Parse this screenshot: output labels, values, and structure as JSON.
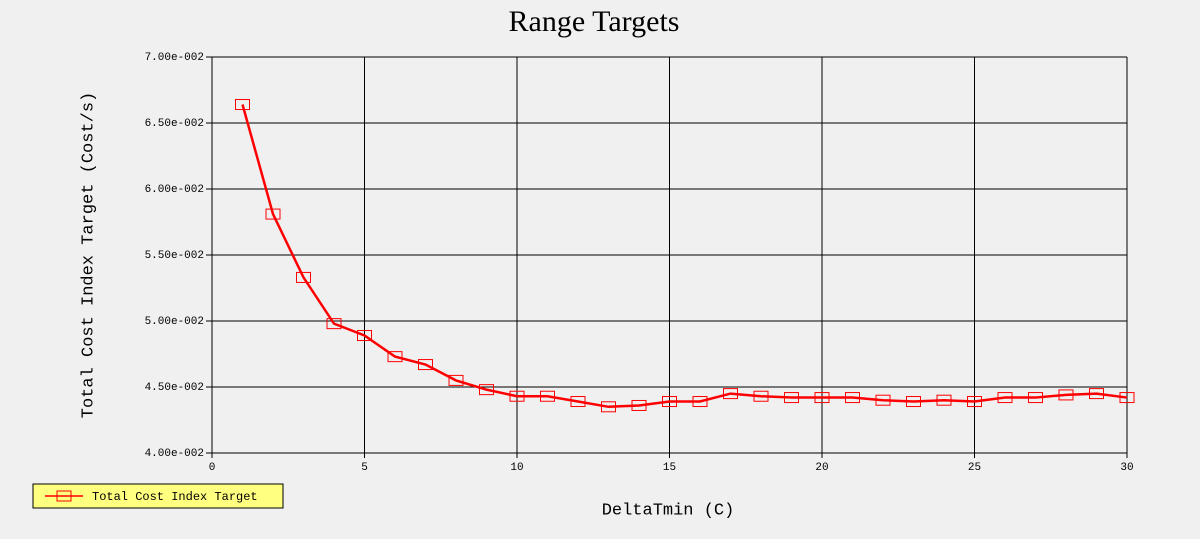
{
  "chart_data": {
    "type": "line",
    "title": "Range Targets",
    "x_label": "DeltaTmin (C)",
    "y_label": "Total Cost Index Target (Cost/s)",
    "x": [
      1,
      2,
      3,
      4,
      5,
      6,
      7,
      8,
      9,
      10,
      11,
      12,
      13,
      14,
      15,
      16,
      17,
      18,
      19,
      20,
      21,
      22,
      23,
      24,
      25,
      26,
      27,
      28,
      29,
      30
    ],
    "series": [
      {
        "name": "Total Cost Index Target",
        "color": "#ff0000",
        "values": [
          0.0664,
          0.0581,
          0.0533,
          0.0498,
          0.0489,
          0.0473,
          0.0467,
          0.0455,
          0.0448,
          0.0443,
          0.0443,
          0.0439,
          0.0435,
          0.0436,
          0.0439,
          0.0439,
          0.0445,
          0.0443,
          0.0442,
          0.0442,
          0.0442,
          0.044,
          0.0439,
          0.044,
          0.0439,
          0.0442,
          0.0442,
          0.0444,
          0.0445,
          0.0442
        ]
      }
    ],
    "xlim": [
      0,
      30
    ],
    "xticks": [
      0,
      5,
      10,
      15,
      20,
      25,
      30
    ],
    "ylim": [
      0.04,
      0.07
    ],
    "yticks": [
      {
        "value": 0.04,
        "label": "4.00e-002"
      },
      {
        "value": 0.045,
        "label": "4.50e-002"
      },
      {
        "value": 0.05,
        "label": "5.00e-002"
      },
      {
        "value": 0.055,
        "label": "5.50e-002"
      },
      {
        "value": 0.06,
        "label": "6.00e-002"
      },
      {
        "value": 0.065,
        "label": "6.50e-002"
      },
      {
        "value": 0.07,
        "label": "7.00e-002"
      }
    ],
    "grid": true,
    "legend": "bottom-left",
    "legend_color": "#ffff80"
  }
}
